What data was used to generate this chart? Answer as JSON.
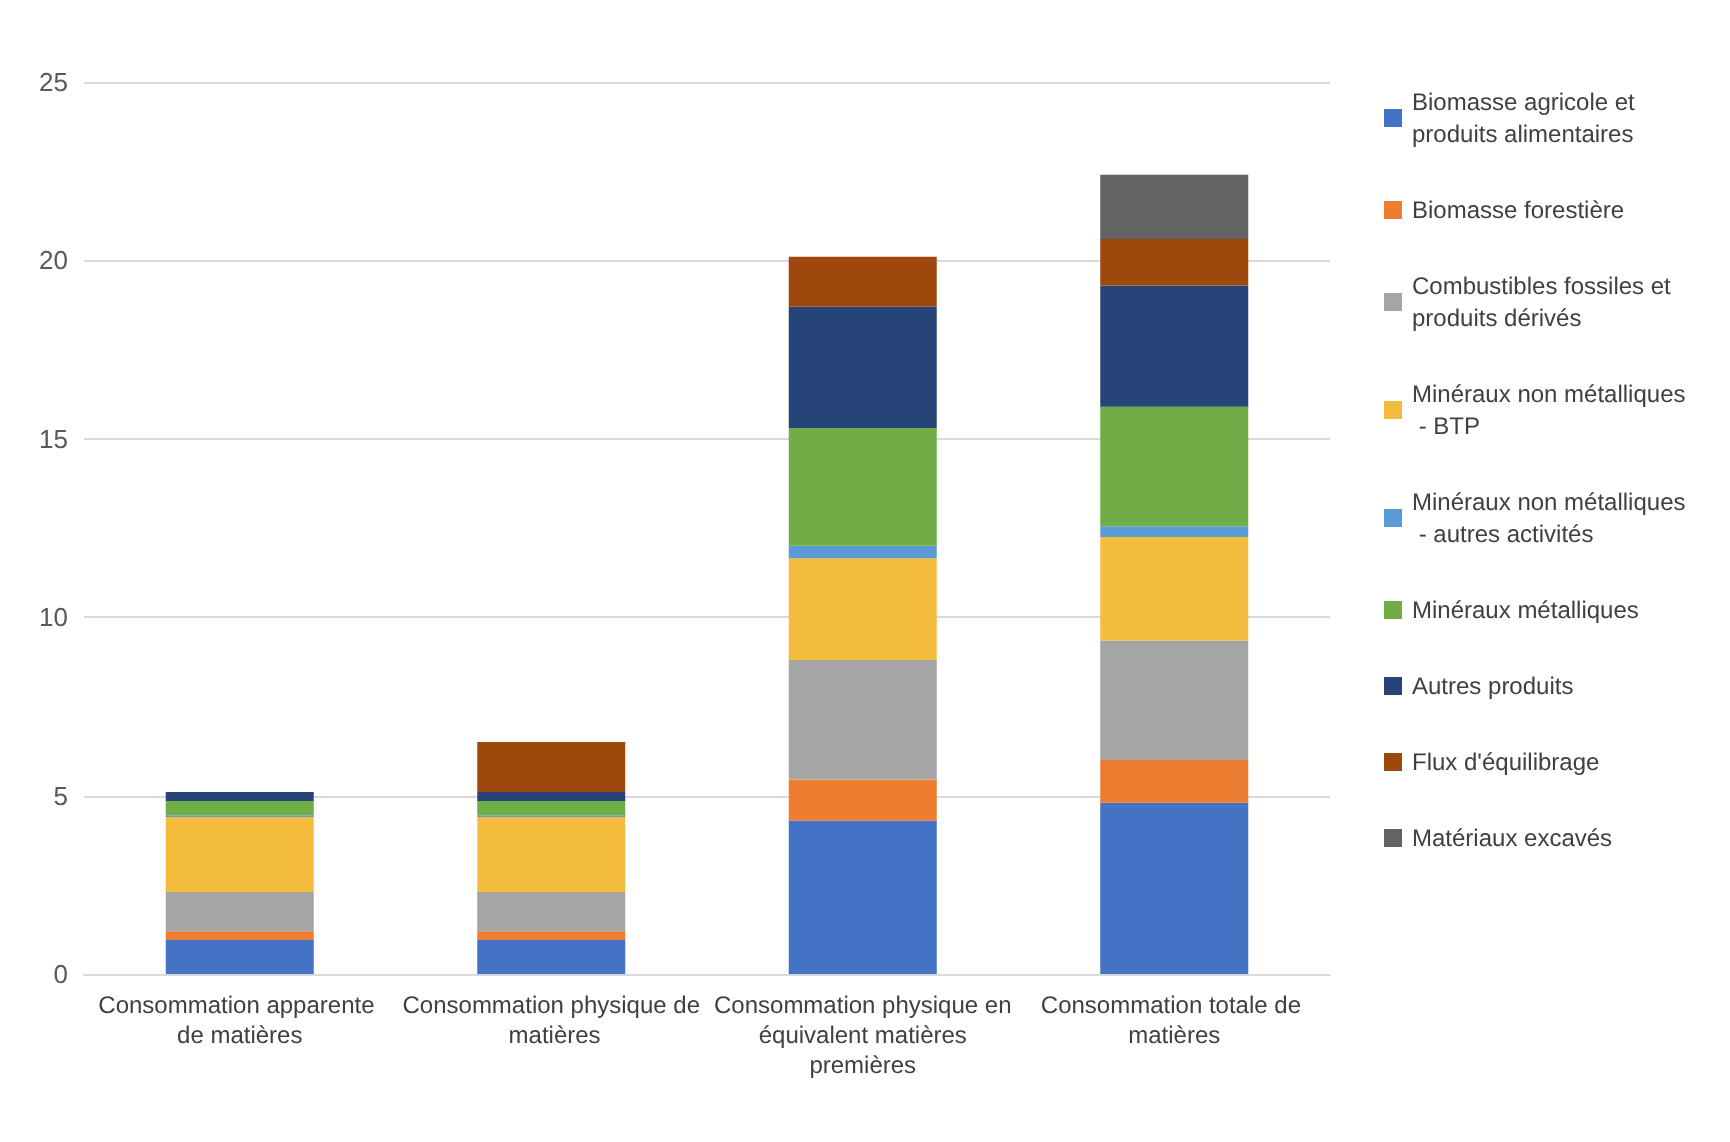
{
  "chart_data": {
    "type": "bar",
    "stacked": true,
    "categories": [
      "Consommation apparente de matières",
      "Consommation physique de matières",
      "Consommation physique en équivalent matières premières",
      "Consommation totale de matières"
    ],
    "series": [
      {
        "name": "Biomasse agricole et produits alimentaires",
        "color": "#4472c4",
        "values": [
          0.95,
          0.95,
          4.3,
          4.8
        ]
      },
      {
        "name": "Biomasse forestière",
        "color": "#ed7d31",
        "values": [
          0.25,
          0.25,
          1.15,
          1.2
        ]
      },
      {
        "name": "Combustibles fossiles et produits dérivés",
        "color": "#a5a5a5",
        "values": [
          1.1,
          1.1,
          3.35,
          3.35
        ]
      },
      {
        "name": "Minéraux non métalliques - BTP",
        "color": "#f4bc3c",
        "values": [
          2.1,
          2.1,
          2.85,
          2.9
        ]
      },
      {
        "name": "Minéraux non métalliques - autres activités",
        "color": "#5b9bd5",
        "values": [
          0.05,
          0.05,
          0.35,
          0.3
        ]
      },
      {
        "name": "Minéraux métalliques",
        "color": "#70ad47",
        "values": [
          0.4,
          0.4,
          3.3,
          3.35
        ]
      },
      {
        "name": "Autres produits",
        "color": "#264478",
        "values": [
          0.25,
          0.25,
          3.4,
          3.4
        ]
      },
      {
        "name": "Flux d'équilibrage",
        "color": "#9e480e",
        "values": [
          0,
          1.4,
          1.4,
          1.3
        ]
      },
      {
        "name": "Matériaux excavés",
        "color": "#636363",
        "values": [
          0,
          0,
          0,
          1.8
        ]
      }
    ],
    "ylim": [
      0,
      25
    ],
    "yticks": [
      0,
      5,
      10,
      15,
      20,
      25
    ],
    "grid": "y",
    "legend": "right"
  }
}
